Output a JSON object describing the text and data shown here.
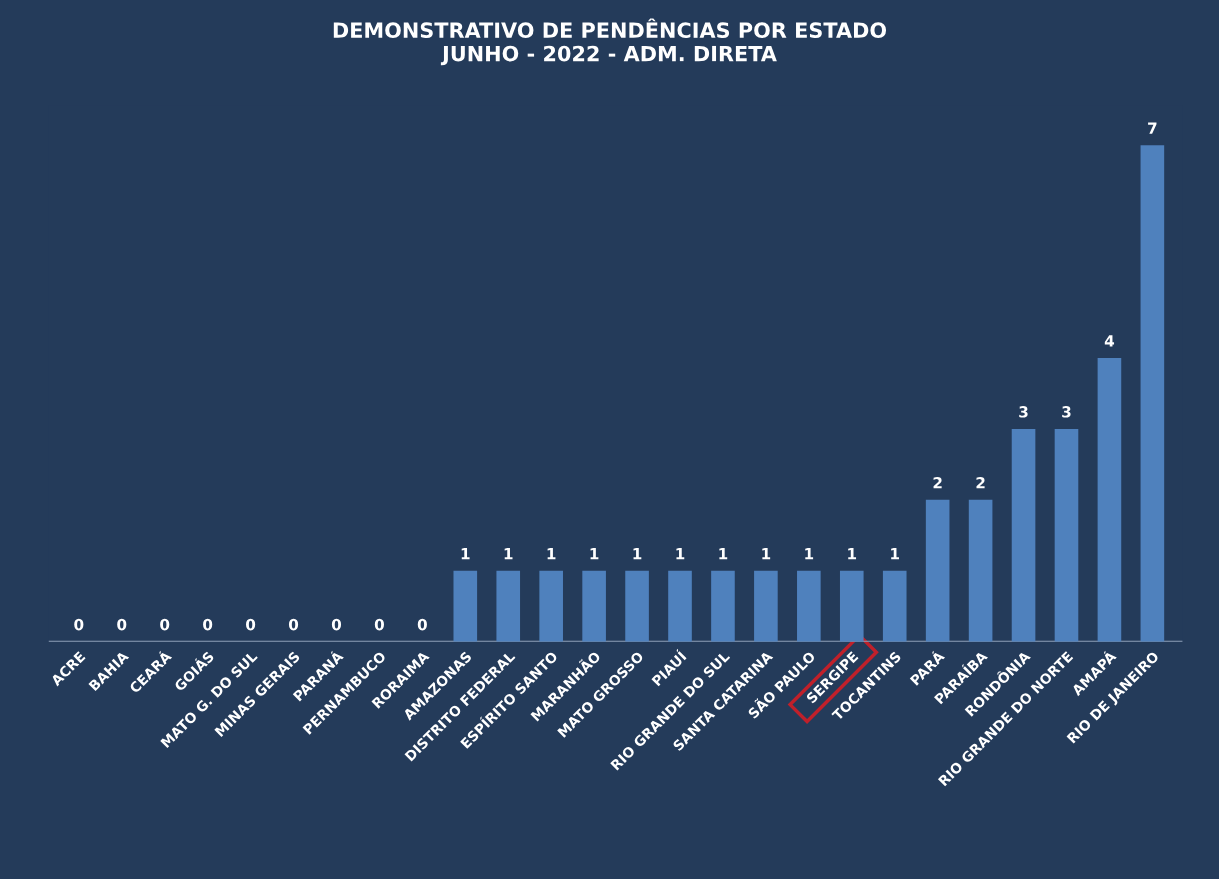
{
  "chart_data": {
    "type": "bar",
    "title": "DEMONSTRATIVO DE PENDÊNCIAS POR ESTADO\nJUNHO - 2022 - ADM. DIRETA",
    "categories": [
      "ACRE",
      "BAHIA",
      "CEARÁ",
      "GOIÁS",
      "MATO G. DO SUL",
      "MINAS GERAIS",
      "PARANÁ",
      "PERNAMBUCO",
      "RORAIMA",
      "AMAZONAS",
      "DISTRITO FEDERAL",
      "ESPÍRITO SANTO",
      "MARANHÃO",
      "MATO GROSSO",
      "PIAUÍ",
      "RIO GRANDE DO SUL",
      "SANTA CATARINA",
      "SÃO PAULO",
      "SERGIPE",
      "TOCANTINS",
      "PARÁ",
      "PARAÍBA",
      "RONDÔNIA",
      "RIO GRANDE DO NORTE",
      "AMAPÁ",
      "RIO DE JANEIRO"
    ],
    "values": [
      0,
      0,
      0,
      0,
      0,
      0,
      0,
      0,
      0,
      1,
      1,
      1,
      1,
      1,
      1,
      1,
      1,
      1,
      1,
      1,
      2,
      2,
      3,
      3,
      4,
      7
    ],
    "color": "#4f81bd",
    "data_labels": true,
    "tick_labels": "x",
    "grid": false,
    "legend": false
  }
}
